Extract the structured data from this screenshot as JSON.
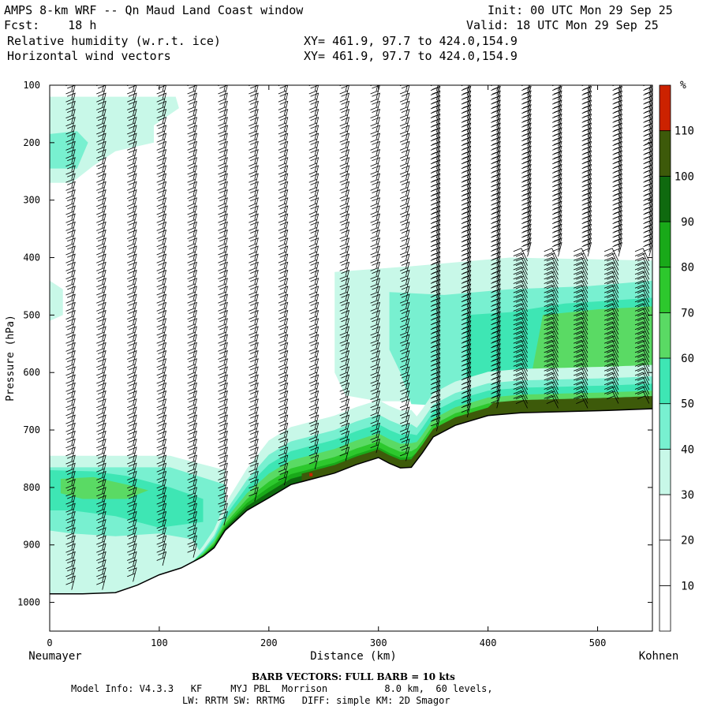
{
  "header": {
    "title": "AMPS 8-km WRF -- Qn Maud Land Coast window",
    "fcst": "Fcst:    18 h",
    "init": "Init: 00 UTC Mon 29 Sep 25",
    "valid": "Valid: 18 UTC Mon 29 Sep 25",
    "field1": "Relative humidity (w.r.t. ice)",
    "field2": "Horizontal wind vectors",
    "xy1": "XY= 461.9, 97.7 to 424.0,154.9",
    "xy2": "XY= 461.9, 97.7 to 424.0,154.9"
  },
  "footer": {
    "barb_note": "BARB VECTORS:  FULL BARB = 10 kts",
    "model_info": "Model Info: V4.3.3   KF     MYJ PBL  Morrison          8.0 km,  60 levels,",
    "physics": "LW: RRTM SW: RRTMG   DIFF: simple KM: 2D Smagor"
  },
  "chart_data": {
    "type": "heatmap",
    "title": "Relative humidity (w.r.t. ice) cross-section with horizontal wind barbs",
    "xlabel": "Distance (km)",
    "ylabel": "Pressure (hPa)",
    "xlim": [
      0,
      550
    ],
    "ylim": [
      1050,
      100
    ],
    "x_ticks": [
      0,
      100,
      200,
      300,
      400,
      500
    ],
    "y_ticks": [
      100,
      200,
      300,
      400,
      500,
      600,
      700,
      800,
      900,
      1000
    ],
    "left_endpoint": "Neumayer",
    "right_endpoint": "Kohnen",
    "colorbar": {
      "unit": "%",
      "levels": [
        10,
        20,
        30,
        40,
        50,
        60,
        70,
        80,
        90,
        100,
        110
      ],
      "colors": [
        "#ffffff",
        "#ffffff",
        "#ffffff",
        "#c8f8e8",
        "#78f0d0",
        "#3ee6b4",
        "#5ada64",
        "#2dc82d",
        "#19a919",
        "#0f6a0f",
        "#3d5a0a",
        "#cc2200"
      ]
    },
    "terrain_surface_hPa": [
      [
        0,
        985
      ],
      [
        30,
        985
      ],
      [
        60,
        983
      ],
      [
        80,
        970
      ],
      [
        100,
        952
      ],
      [
        120,
        940
      ],
      [
        140,
        920
      ],
      [
        150,
        905
      ],
      [
        160,
        875
      ],
      [
        180,
        840
      ],
      [
        200,
        818
      ],
      [
        220,
        795
      ],
      [
        240,
        785
      ],
      [
        260,
        775
      ],
      [
        280,
        760
      ],
      [
        300,
        748
      ],
      [
        310,
        758
      ],
      [
        320,
        766
      ],
      [
        330,
        765
      ],
      [
        340,
        740
      ],
      [
        350,
        712
      ],
      [
        370,
        692
      ],
      [
        400,
        675
      ],
      [
        430,
        670
      ],
      [
        470,
        668
      ],
      [
        510,
        666
      ],
      [
        550,
        663
      ]
    ],
    "moist_regions": [
      {
        "name": "upper-left patch",
        "x_range": [
          0,
          120
        ],
        "p_range": [
          110,
          270
        ],
        "rh_peak": 60
      },
      {
        "name": "lower-left boundary layer",
        "x_range": [
          0,
          150
        ],
        "p_range": [
          740,
          980
        ],
        "rh_peak": 80
      },
      {
        "name": "terrain-following moist layer",
        "x_range": [
          130,
          550
        ],
        "p_range": [
          620,
          900
        ],
        "rh_peak": 110
      },
      {
        "name": "mid-level deck right",
        "x_range": [
          260,
          550
        ],
        "p_range": [
          410,
          650
        ],
        "rh_peak": 80
      }
    ],
    "barb_columns_km": [
      20,
      48,
      76,
      103,
      131,
      159,
      187,
      214,
      242,
      270,
      298,
      325,
      353,
      381,
      408,
      436,
      464,
      491,
      519,
      547
    ]
  }
}
